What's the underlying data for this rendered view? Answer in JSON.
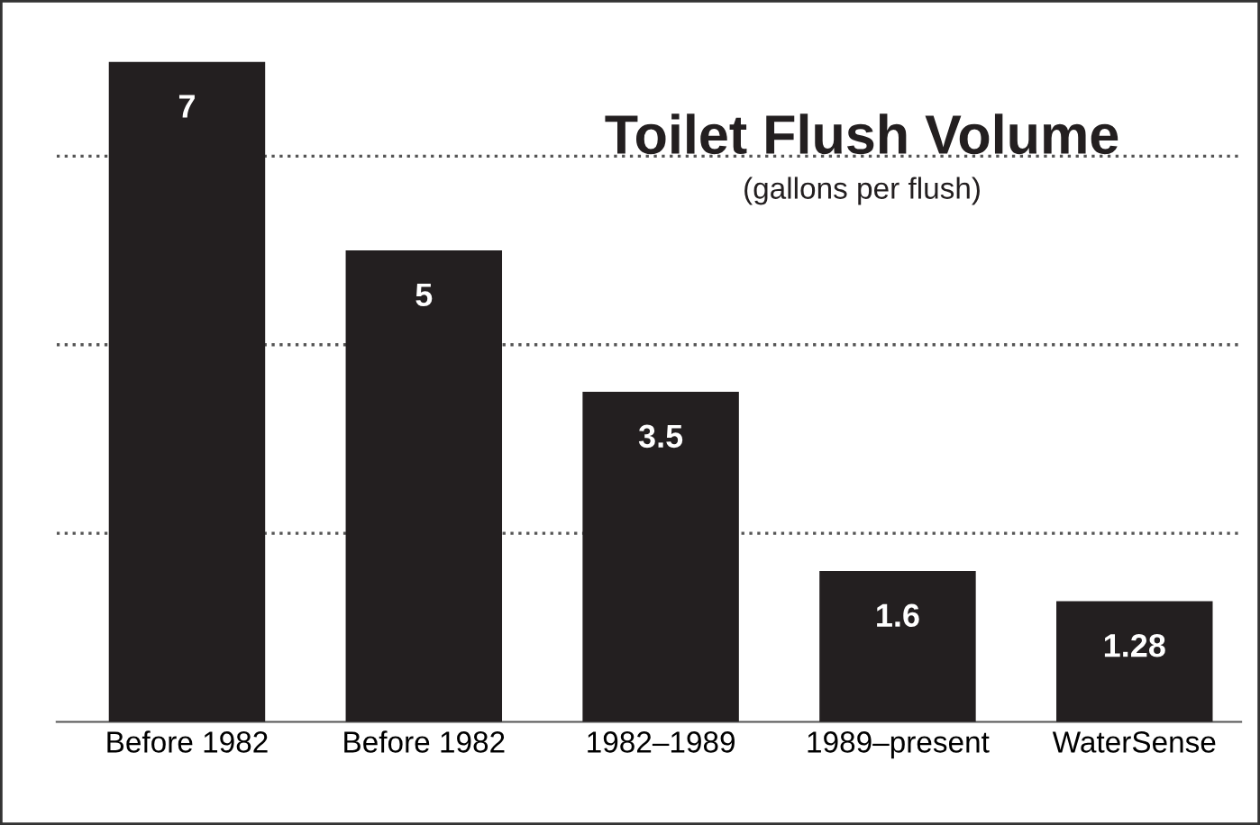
{
  "chart_data": {
    "type": "bar",
    "title": "Toilet Flush Volume",
    "subtitle": "(gallons per flush)",
    "categories": [
      "Before 1982",
      "Before 1982",
      "1982–1989",
      "1989–present",
      "WaterSense"
    ],
    "values": [
      7,
      5,
      3.5,
      1.6,
      1.28
    ],
    "color": "#231f20",
    "yticks": [
      {
        "value": 2,
        "label": null
      },
      {
        "value": 4,
        "label": null
      },
      {
        "value": 6,
        "label": null
      }
    ],
    "grid": "y",
    "line_style": "dotted",
    "data_labels": true,
    "tick_labels": "x"
  }
}
